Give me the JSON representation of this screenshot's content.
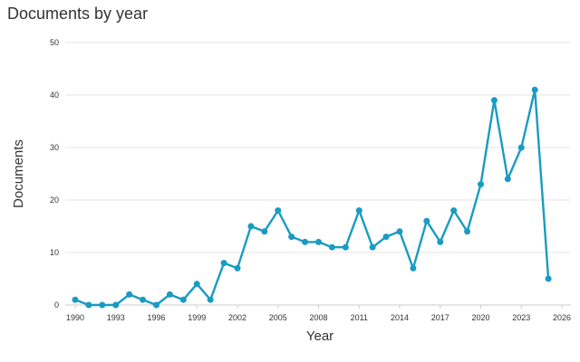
{
  "chart_data": {
    "type": "line",
    "title": "Documents by year",
    "xlabel": "Year",
    "ylabel": "Documents",
    "xlim": [
      1990,
      2026
    ],
    "ylim": [
      0,
      50
    ],
    "xticks": [
      1990,
      1993,
      1996,
      1999,
      2002,
      2005,
      2008,
      2011,
      2014,
      2017,
      2020,
      2023,
      2026
    ],
    "yticks": [
      0,
      10,
      20,
      30,
      40,
      50
    ],
    "grid": true,
    "series_color": "#1a9bc2",
    "x": [
      1990,
      1991,
      1992,
      1993,
      1994,
      1995,
      1996,
      1997,
      1998,
      1999,
      2000,
      2001,
      2002,
      2003,
      2004,
      2005,
      2006,
      2007,
      2008,
      2009,
      2010,
      2011,
      2012,
      2013,
      2014,
      2015,
      2016,
      2017,
      2018,
      2019,
      2020,
      2021,
      2022,
      2023,
      2024,
      2025
    ],
    "values": [
      1,
      0,
      0,
      0,
      2,
      1,
      0,
      2,
      1,
      4,
      1,
      8,
      7,
      15,
      14,
      18,
      13,
      12,
      12,
      11,
      11,
      18,
      11,
      13,
      14,
      7,
      16,
      12,
      18,
      14,
      23,
      39,
      24,
      30,
      41,
      5
    ]
  }
}
